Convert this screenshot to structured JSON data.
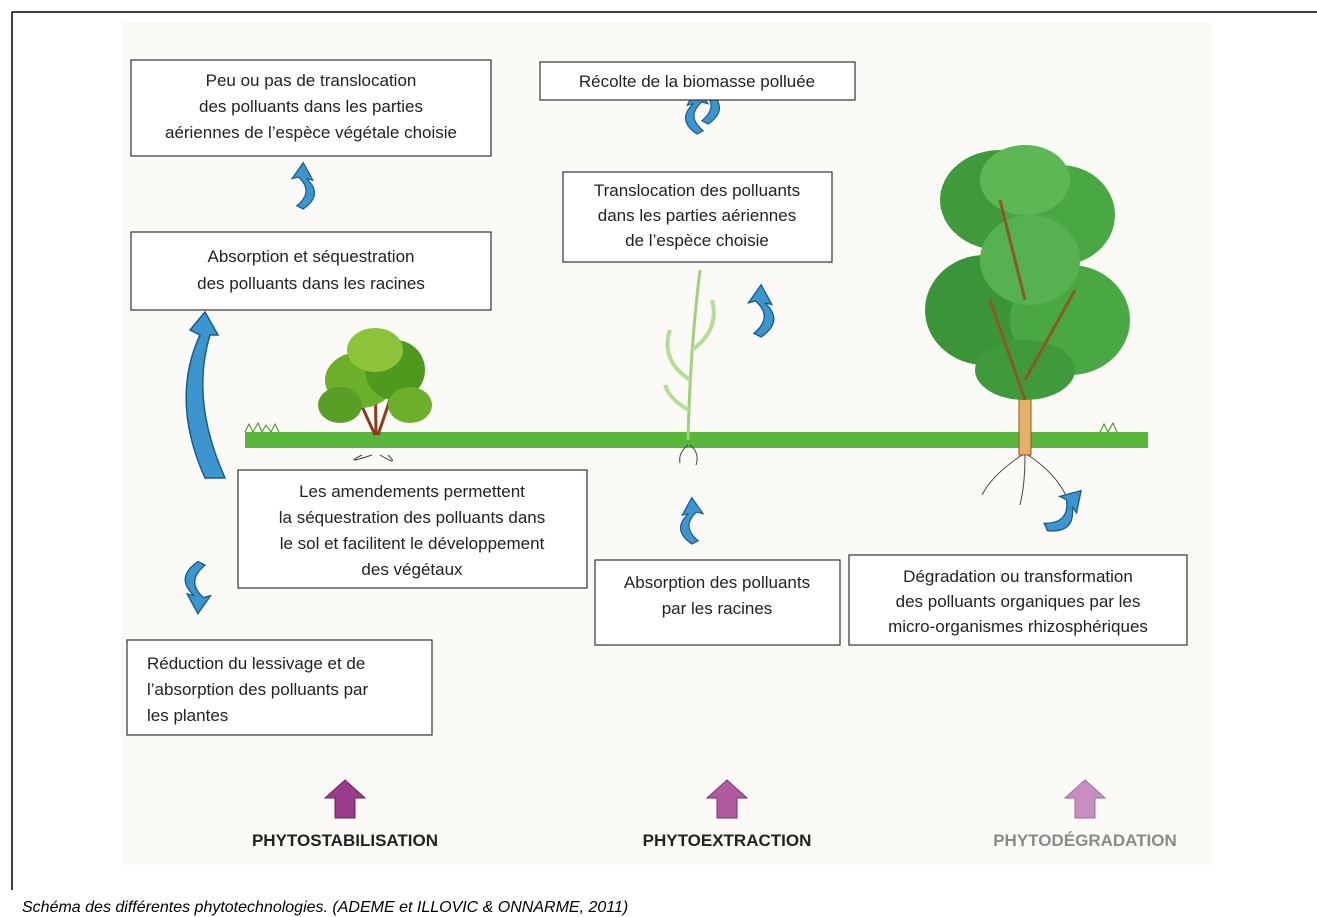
{
  "boxes": [
    {
      "lines": [
        "Peu ou pas de translocation",
        "des polluants dans les parties",
        "aériennes de l’espèce végétale choisie"
      ]
    },
    {
      "lines": [
        "Récolte de la biomasse polluée"
      ]
    },
    {
      "lines": [
        "Translocation des polluants",
        "dans les parties aériennes",
        "de l’espèce choisie"
      ]
    },
    {
      "lines": [
        "Absorption et séquestration",
        "des polluants dans les racines"
      ]
    },
    {
      "lines": [
        "Les amendements permettent",
        "la séquestration des polluants dans",
        "le sol et facilitent le développement",
        "des végétaux"
      ]
    },
    {
      "lines": [
        "Absorption des polluants",
        "par les racines"
      ]
    },
    {
      "lines": [
        "Dégradation ou transformation",
        "des polluants organiques par les",
        "micro-organismes rhizosphériques"
      ]
    },
    {
      "lines": [
        "Réduction du lessivage et de",
        "l’absorption des polluants par",
        "les plantes"
      ]
    }
  ],
  "labels": [
    "PHYTOSTABILISATION",
    "PHYTOEXTRACTION",
    "PHYTODÉGRADATION"
  ],
  "caption": "Schéma des différentes phytotechnologies. (ADEME et ILLOVIC & ONNARME, 2011)"
}
